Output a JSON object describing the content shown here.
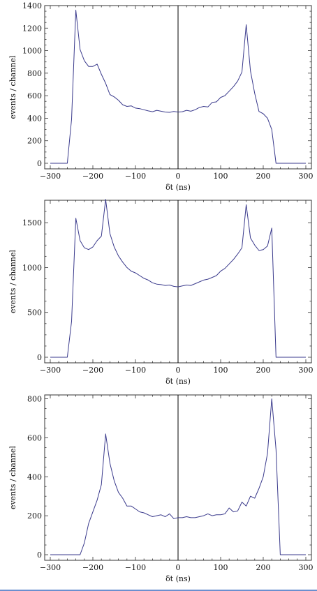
{
  "chart_data": [
    {
      "type": "line",
      "xlabel": "δt (ns)",
      "ylabel": "events / channel",
      "xlim": [
        -300,
        300
      ],
      "ylim": [
        0,
        1400
      ],
      "xticks": [
        -300,
        -200,
        -100,
        0,
        100,
        200,
        300
      ],
      "yticks": [
        0,
        200,
        400,
        600,
        800,
        1000,
        1200,
        1400
      ],
      "grid": false,
      "series_color": "#3a3a8c",
      "series": [
        {
          "x": [
            -300,
            -290,
            -280,
            -270,
            -260,
            -250,
            -240,
            -230,
            -220,
            -210,
            -200,
            -190,
            -180,
            -170,
            -160,
            -150,
            -140,
            -130,
            -120,
            -110,
            -100,
            -90,
            -80,
            -70,
            -60,
            -50,
            -40,
            -30,
            -20,
            -10,
            0,
            10,
            20,
            30,
            40,
            50,
            60,
            70,
            80,
            90,
            100,
            110,
            120,
            130,
            140,
            150,
            160,
            170,
            180,
            190,
            200,
            210,
            220,
            230,
            240,
            250,
            260,
            270,
            280,
            290,
            300
          ],
          "y": [
            0,
            0,
            0,
            0,
            0,
            390,
            1360,
            1010,
            910,
            860,
            860,
            880,
            790,
            710,
            610,
            590,
            560,
            520,
            505,
            510,
            490,
            485,
            475,
            465,
            458,
            470,
            462,
            455,
            452,
            460,
            455,
            458,
            470,
            462,
            475,
            495,
            505,
            500,
            540,
            545,
            585,
            600,
            640,
            680,
            730,
            810,
            1230,
            820,
            620,
            460,
            440,
            400,
            300,
            0,
            0,
            0,
            0,
            0,
            0,
            0,
            0
          ]
        }
      ]
    },
    {
      "type": "line",
      "xlabel": "δt (ns)",
      "ylabel": "events / channel",
      "xlim": [
        -300,
        300
      ],
      "ylim": [
        0,
        1750
      ],
      "xticks": [
        -300,
        -200,
        -100,
        0,
        100,
        200,
        300
      ],
      "yticks": [
        0,
        500,
        1000,
        1500
      ],
      "grid": false,
      "series_color": "#3a3a8c",
      "series": [
        {
          "x": [
            -300,
            -290,
            -280,
            -270,
            -260,
            -250,
            -240,
            -230,
            -220,
            -210,
            -200,
            -190,
            -180,
            -170,
            -160,
            -150,
            -140,
            -130,
            -120,
            -110,
            -100,
            -90,
            -80,
            -70,
            -60,
            -50,
            -40,
            -30,
            -20,
            -10,
            0,
            10,
            20,
            30,
            40,
            50,
            60,
            70,
            80,
            90,
            100,
            110,
            120,
            130,
            140,
            150,
            160,
            170,
            180,
            190,
            200,
            210,
            220,
            230,
            240,
            250,
            260,
            270,
            280,
            290,
            300
          ],
          "y": [
            0,
            0,
            0,
            0,
            0,
            400,
            1550,
            1300,
            1220,
            1200,
            1230,
            1300,
            1350,
            1760,
            1380,
            1230,
            1130,
            1060,
            1000,
            960,
            940,
            910,
            880,
            860,
            830,
            815,
            810,
            800,
            805,
            790,
            785,
            795,
            805,
            800,
            820,
            840,
            860,
            870,
            890,
            910,
            960,
            990,
            1040,
            1090,
            1150,
            1220,
            1700,
            1330,
            1250,
            1190,
            1200,
            1240,
            1440,
            0,
            0,
            0,
            0,
            0,
            0,
            0,
            0
          ]
        }
      ]
    },
    {
      "type": "line",
      "xlabel": "δt (ns)",
      "ylabel": "events / channel",
      "xlim": [
        -300,
        300
      ],
      "ylim": [
        0,
        820
      ],
      "xticks": [
        -300,
        -200,
        -100,
        0,
        100,
        200,
        300
      ],
      "yticks": [
        0,
        200,
        400,
        600,
        800
      ],
      "grid": false,
      "series_color": "#3a3a8c",
      "series": [
        {
          "x": [
            -300,
            -290,
            -280,
            -270,
            -260,
            -250,
            -240,
            -230,
            -220,
            -210,
            -200,
            -190,
            -180,
            -170,
            -160,
            -150,
            -140,
            -130,
            -120,
            -110,
            -100,
            -90,
            -80,
            -70,
            -60,
            -50,
            -40,
            -30,
            -20,
            -10,
            0,
            10,
            20,
            30,
            40,
            50,
            60,
            70,
            80,
            90,
            100,
            110,
            120,
            130,
            140,
            150,
            160,
            170,
            180,
            190,
            200,
            210,
            220,
            230,
            240,
            250,
            260,
            270,
            280,
            290,
            300
          ],
          "y": [
            0,
            0,
            0,
            0,
            0,
            0,
            0,
            0,
            60,
            160,
            220,
            280,
            360,
            620,
            470,
            380,
            320,
            290,
            250,
            250,
            235,
            220,
            215,
            205,
            195,
            200,
            205,
            195,
            210,
            185,
            190,
            190,
            195,
            190,
            190,
            195,
            200,
            210,
            200,
            205,
            205,
            210,
            240,
            220,
            225,
            270,
            250,
            300,
            290,
            340,
            400,
            520,
            800,
            540,
            0,
            0,
            0,
            0,
            0,
            0,
            0
          ]
        }
      ]
    }
  ]
}
